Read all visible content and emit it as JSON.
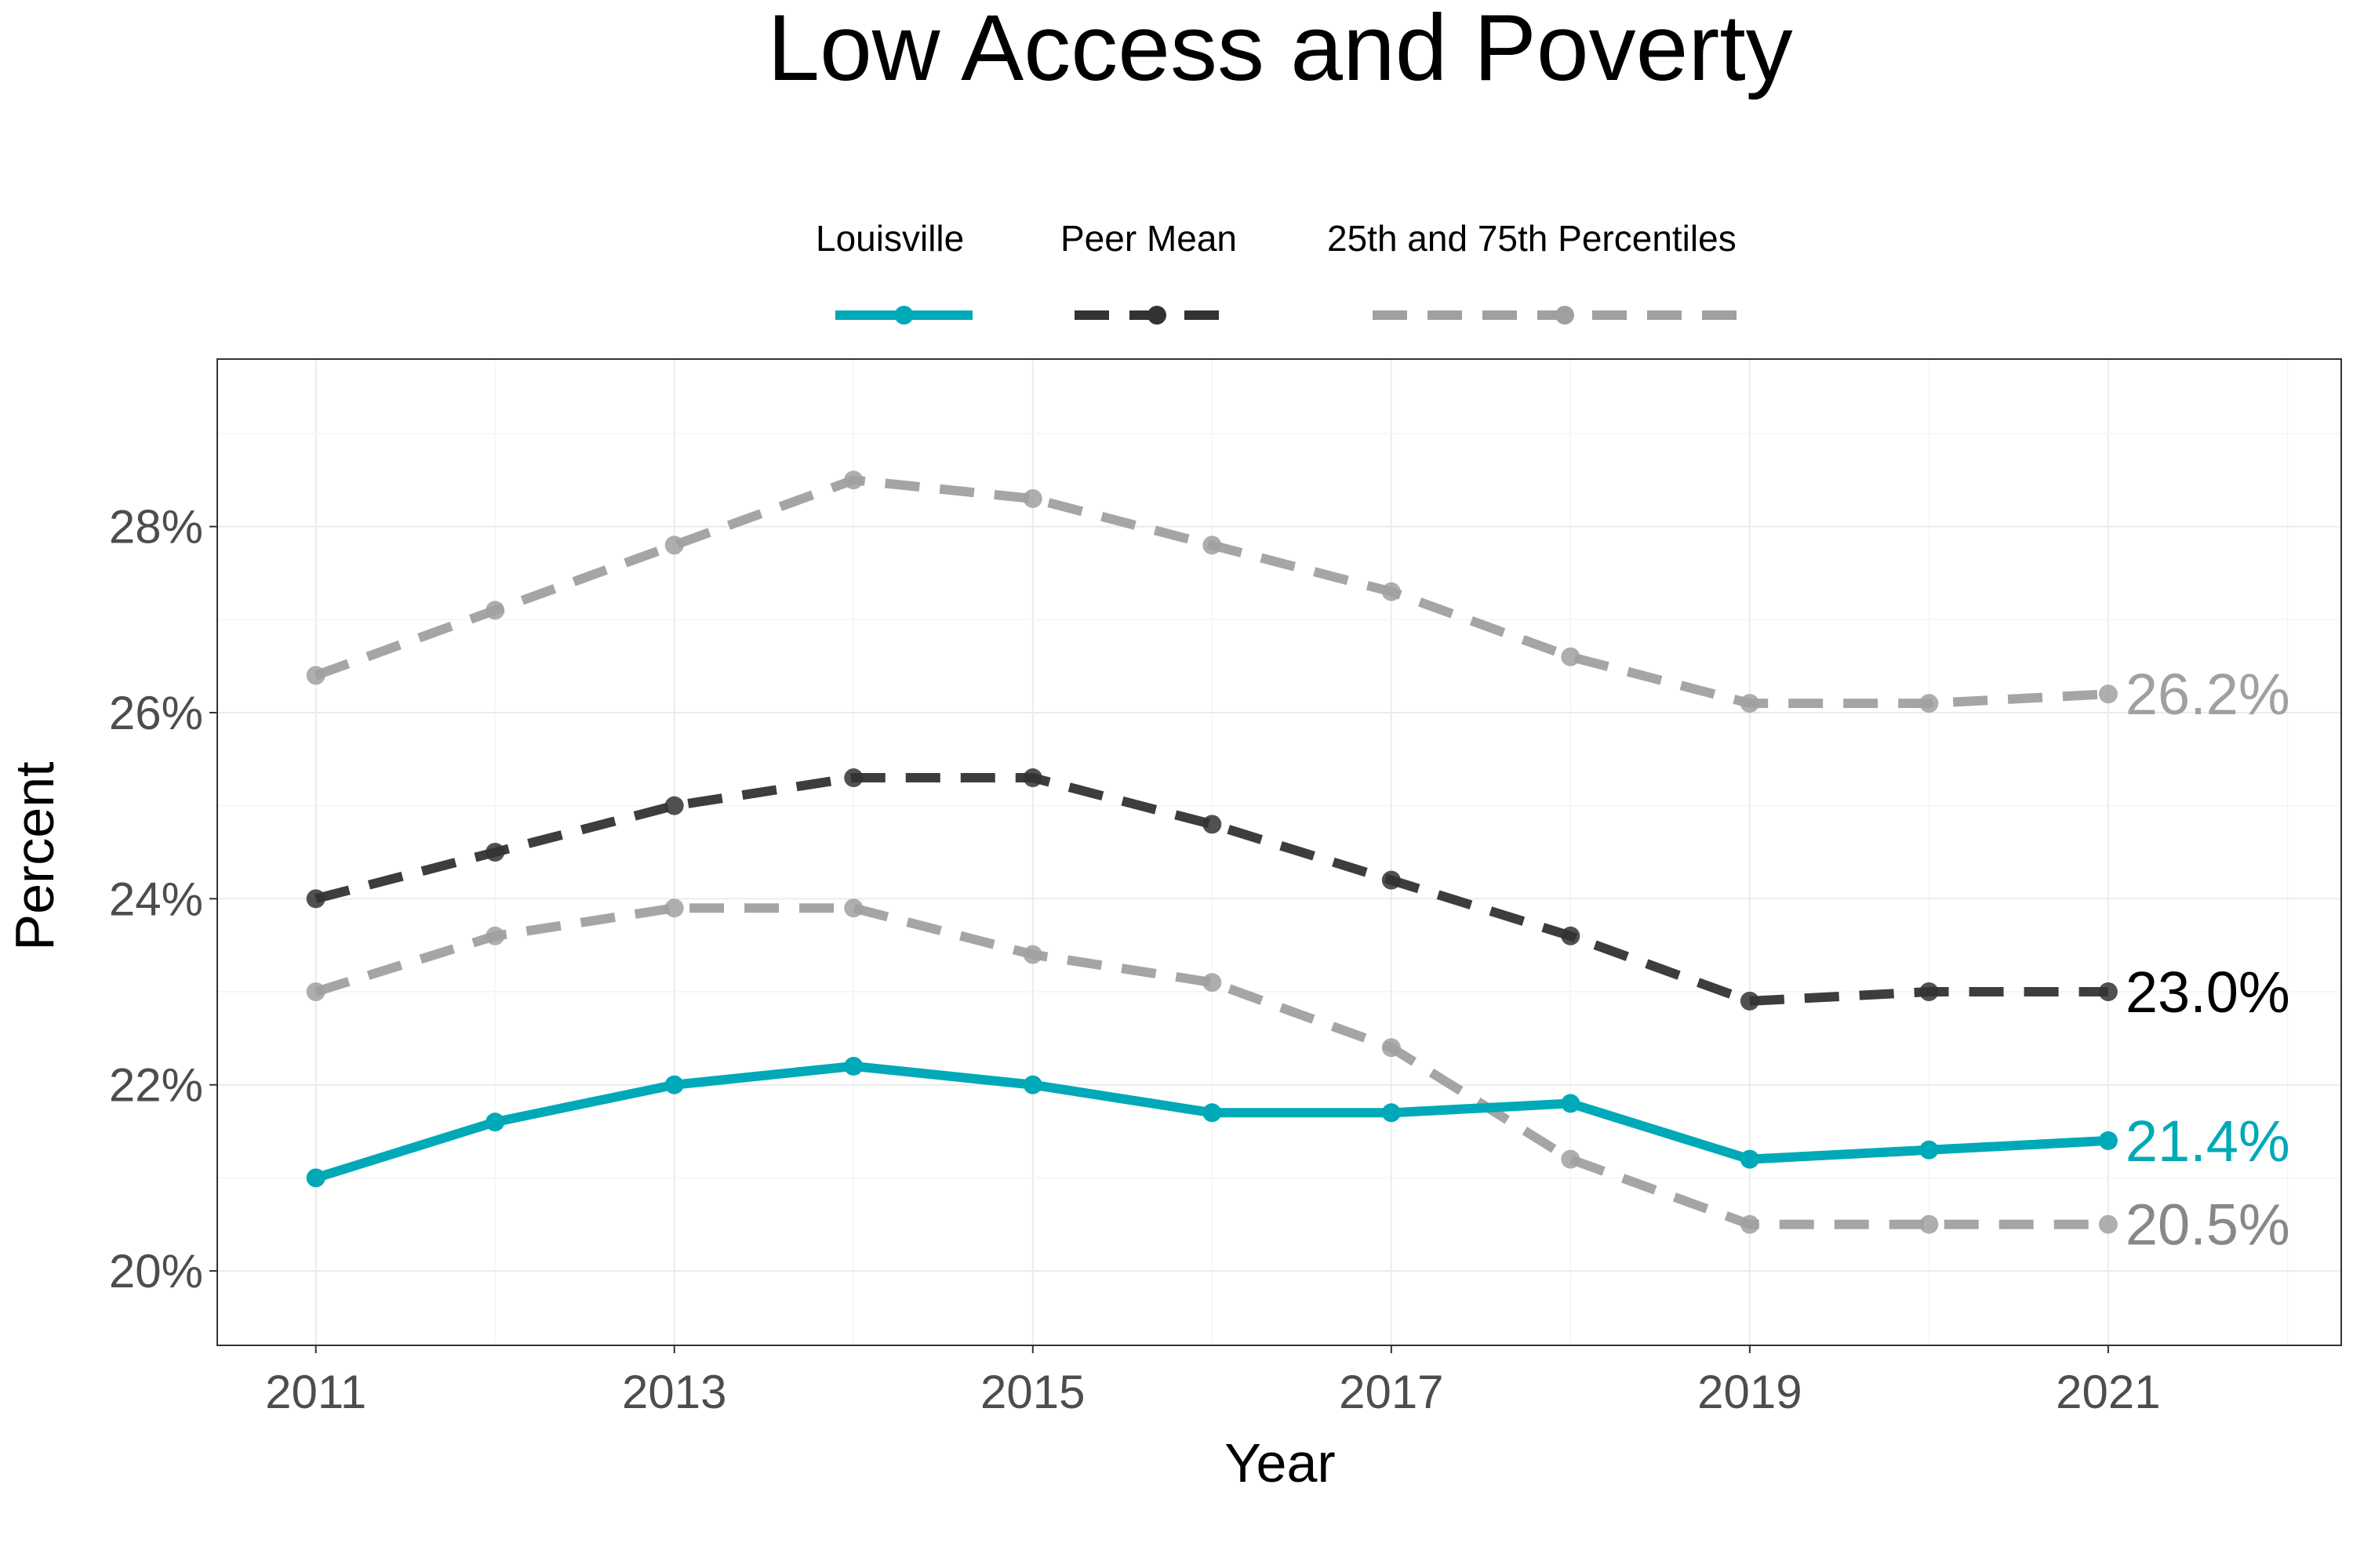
{
  "chart_data": {
    "type": "line",
    "title": "Low Access and Poverty",
    "xlabel": "Year",
    "ylabel": "Percent",
    "x": [
      2011,
      2012,
      2013,
      2014,
      2015,
      2016,
      2017,
      2018,
      2019,
      2020,
      2021
    ],
    "x_ticks": [
      "2011",
      "2013",
      "2015",
      "2017",
      "2019",
      "2021"
    ],
    "y_ticks": [
      "20%",
      "22%",
      "24%",
      "26%",
      "28%"
    ],
    "xlim": [
      2010.45,
      2022.3
    ],
    "ylim": [
      19.2,
      29.8
    ],
    "grid": true,
    "legend_position": "top",
    "legend": [
      {
        "label": "Louisville",
        "color": "#00a9b7",
        "style": "solid"
      },
      {
        "label": "Peer Mean",
        "color": "#333333",
        "style": "dashed"
      },
      {
        "label": "25th and 75th Percentiles",
        "color": "#a0a0a0",
        "style": "dashed"
      }
    ],
    "series": [
      {
        "role": "75th",
        "color": "#a0a0a0",
        "style": "dashed",
        "values": [
          26.4,
          27.1,
          27.8,
          28.5,
          28.3,
          27.8,
          27.3,
          26.6,
          26.1,
          26.1,
          26.2
        ],
        "end_label": "26.2%"
      },
      {
        "role": "Peer Mean",
        "color": "#333333",
        "style": "dashed",
        "values": [
          24.0,
          24.5,
          25.0,
          25.3,
          25.3,
          24.8,
          24.2,
          23.6,
          22.9,
          23.0,
          23.0
        ],
        "end_label": "23.0%",
        "end_label_color": "#000000"
      },
      {
        "role": "25th",
        "color": "#a0a0a0",
        "style": "dashed",
        "values": [
          23.0,
          23.6,
          23.9,
          23.9,
          23.4,
          23.1,
          22.4,
          21.2,
          20.5,
          20.5,
          20.5
        ],
        "end_label": "20.5%",
        "end_label_color": "#888888"
      },
      {
        "role": "Louisville",
        "color": "#00a9b7",
        "style": "solid",
        "values": [
          21.0,
          21.6,
          22.0,
          22.2,
          22.0,
          21.7,
          21.7,
          21.8,
          21.2,
          21.3,
          21.4
        ],
        "end_label": "21.4%"
      }
    ]
  }
}
